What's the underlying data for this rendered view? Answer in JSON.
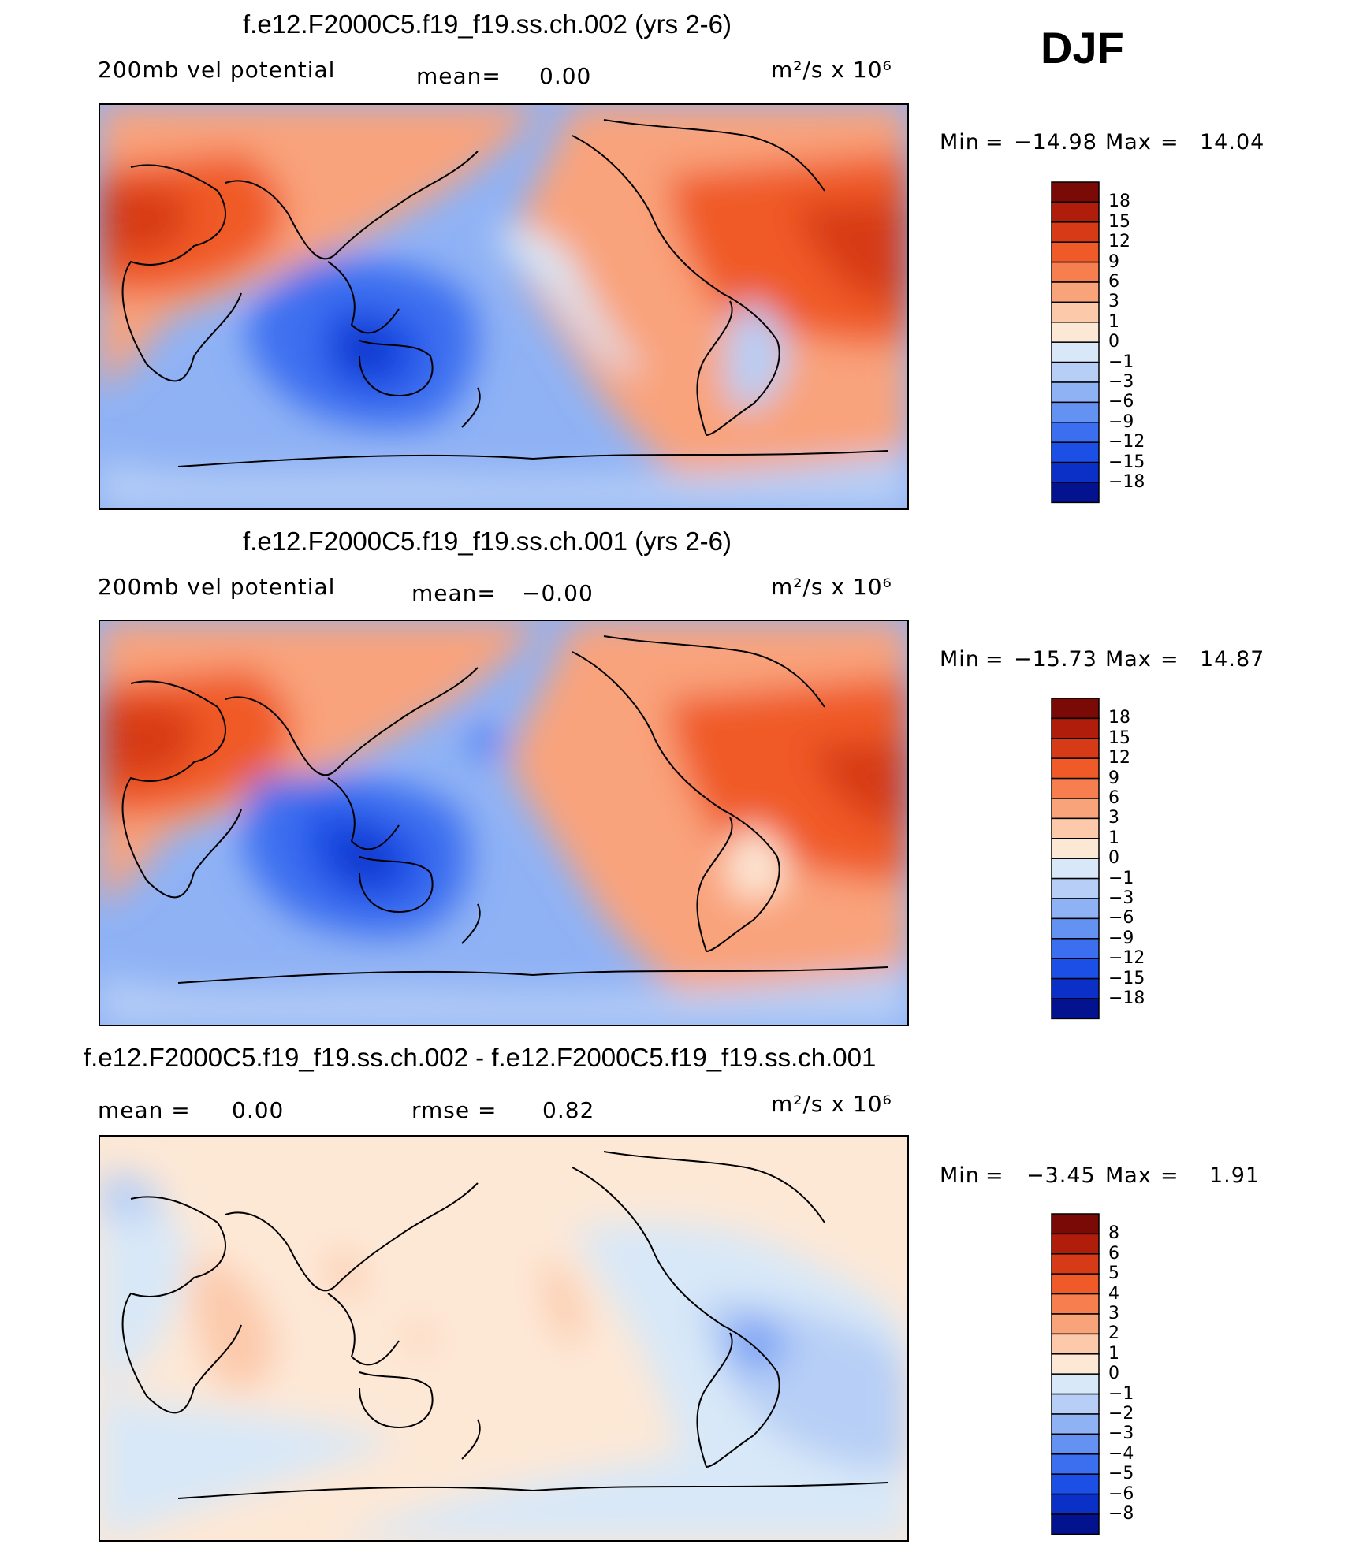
{
  "season": "DJF",
  "panels": [
    {
      "title": "f.e12.F2000C5.f19_f19.ss.ch.002 (yrs 2-6)",
      "left_label": "200mb vel potential",
      "mean_label": "mean=",
      "mean_value": "0.00",
      "units": "m²/s x 10⁶",
      "min_label": "Min",
      "min_value": "−14.98",
      "max_label": "Max",
      "max_value": "14.04",
      "colorbar_labels": [
        "18",
        "15",
        "12",
        "9",
        "6",
        "3",
        "1",
        "0",
        "−1",
        "−3",
        "−6",
        "−9",
        "−12",
        "−15",
        "−18"
      ]
    },
    {
      "title": "f.e12.F2000C5.f19_f19.ss.ch.001 (yrs 2-6)",
      "left_label": "200mb vel potential",
      "mean_label": "mean=",
      "mean_value": "−0.00",
      "units": "m²/s x 10⁶",
      "min_label": "Min",
      "min_value": "−15.73",
      "max_label": "Max",
      "max_value": "14.87",
      "colorbar_labels": [
        "18",
        "15",
        "12",
        "9",
        "6",
        "3",
        "1",
        "0",
        "−1",
        "−3",
        "−6",
        "−9",
        "−12",
        "−15",
        "−18"
      ]
    },
    {
      "title": "f.e12.F2000C5.f19_f19.ss.ch.002 - f.e12.F2000C5.f19_f19.ss.ch.001",
      "left_label": "mean =",
      "left_value": "0.00",
      "rmse_label": "rmse =",
      "rmse_value": "0.82",
      "units": "m²/s x 10⁶",
      "min_label": "Min",
      "min_value": "−3.45",
      "max_label": "Max",
      "max_value": "1.91",
      "colorbar_labels": [
        "8",
        "6",
        "5",
        "4",
        "3",
        "2",
        "1",
        "0",
        "−1",
        "−2",
        "−3",
        "−4",
        "−5",
        "−6",
        "−8"
      ]
    }
  ],
  "colorbar_colors": [
    "#7a0a05",
    "#b01d0a",
    "#d73a17",
    "#f05a28",
    "#f77e4e",
    "#f9a37b",
    "#fcc9ab",
    "#fde8d6",
    "#d8e8f8",
    "#b7cff6",
    "#8fb2f5",
    "#6392f2",
    "#3c6ff0",
    "#1c4fe6",
    "#0b30c8",
    "#03138f"
  ],
  "chart_data": [
    {
      "type": "heatmap",
      "title": "f.e12.F2000C5.f19_f19.ss.ch.002 (yrs 2-6)",
      "variable": "200mb vel potential",
      "units": "m²/s x 10⁶",
      "mean": 0.0,
      "min": -14.98,
      "max": 14.04,
      "contour_levels": [
        -18,
        -15,
        -12,
        -9,
        -6,
        -3,
        -1,
        0,
        1,
        3,
        6,
        9,
        12,
        15,
        18
      ]
    },
    {
      "type": "heatmap",
      "title": "f.e12.F2000C5.f19_f19.ss.ch.001 (yrs 2-6)",
      "variable": "200mb vel potential",
      "units": "m²/s x 10⁶",
      "mean": -0.0,
      "min": -15.73,
      "max": 14.87,
      "contour_levels": [
        -18,
        -15,
        -12,
        -9,
        -6,
        -3,
        -1,
        0,
        1,
        3,
        6,
        9,
        12,
        15,
        18
      ]
    },
    {
      "type": "heatmap",
      "title": "f.e12.F2000C5.f19_f19.ss.ch.002 - f.e12.F2000C5.f19_f19.ss.ch.001",
      "units": "m²/s x 10⁶",
      "mean": 0.0,
      "rmse": 0.82,
      "min": -3.45,
      "max": 1.91,
      "contour_levels": [
        -8,
        -6,
        -5,
        -4,
        -3,
        -2,
        -1,
        0,
        1,
        2,
        3,
        4,
        5,
        6,
        8
      ]
    }
  ]
}
